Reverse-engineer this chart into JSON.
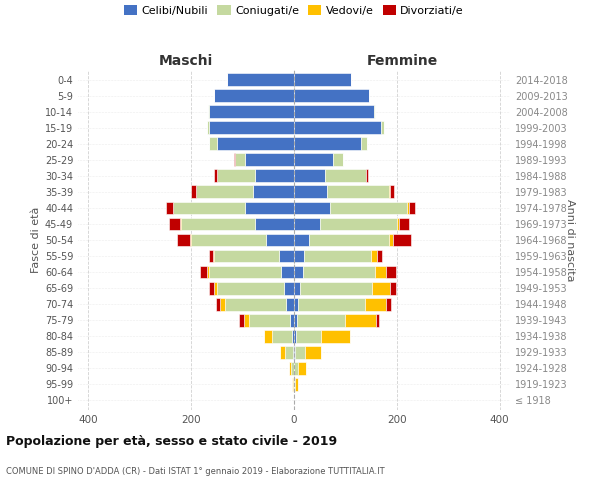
{
  "age_groups": [
    "100+",
    "95-99",
    "90-94",
    "85-89",
    "80-84",
    "75-79",
    "70-74",
    "65-69",
    "60-64",
    "55-59",
    "50-54",
    "45-49",
    "40-44",
    "35-39",
    "30-34",
    "25-29",
    "20-24",
    "15-19",
    "10-14",
    "5-9",
    "0-4"
  ],
  "birth_years": [
    "≤ 1918",
    "1919-1923",
    "1924-1928",
    "1929-1933",
    "1934-1938",
    "1939-1943",
    "1944-1948",
    "1949-1953",
    "1954-1958",
    "1959-1963",
    "1964-1968",
    "1969-1973",
    "1974-1978",
    "1979-1983",
    "1984-1988",
    "1989-1993",
    "1994-1998",
    "1999-2003",
    "2004-2008",
    "2009-2013",
    "2014-2018"
  ],
  "colors": {
    "celibi": "#4472c4",
    "coniugati": "#c5d9a0",
    "vedovi": "#ffc000",
    "divorziati": "#c00000"
  },
  "maschi": {
    "celibi": [
      0,
      0,
      0,
      2,
      3,
      8,
      15,
      20,
      25,
      30,
      55,
      75,
      95,
      80,
      75,
      95,
      150,
      165,
      165,
      155,
      130
    ],
    "coniugati": [
      0,
      2,
      5,
      15,
      40,
      80,
      120,
      130,
      140,
      125,
      145,
      145,
      140,
      110,
      75,
      20,
      15,
      5,
      3,
      0,
      0
    ],
    "vedovi": [
      0,
      2,
      5,
      10,
      15,
      10,
      8,
      5,
      5,
      3,
      3,
      2,
      1,
      0,
      0,
      0,
      0,
      0,
      0,
      0,
      0
    ],
    "divorziati": [
      0,
      0,
      0,
      0,
      0,
      8,
      8,
      10,
      12,
      8,
      25,
      22,
      12,
      10,
      5,
      2,
      0,
      0,
      0,
      0,
      0
    ]
  },
  "femmine": {
    "nubili": [
      0,
      0,
      0,
      2,
      3,
      5,
      8,
      12,
      18,
      20,
      30,
      50,
      70,
      65,
      60,
      75,
      130,
      170,
      155,
      145,
      110
    ],
    "coniugate": [
      0,
      2,
      8,
      20,
      50,
      95,
      130,
      140,
      140,
      130,
      155,
      150,
      150,
      120,
      80,
      20,
      12,
      5,
      3,
      0,
      0
    ],
    "vedove": [
      0,
      5,
      15,
      30,
      55,
      60,
      40,
      35,
      20,
      12,
      8,
      5,
      3,
      2,
      0,
      0,
      0,
      0,
      0,
      0,
      0
    ],
    "divorziate": [
      0,
      0,
      0,
      0,
      0,
      5,
      10,
      12,
      20,
      10,
      35,
      18,
      12,
      8,
      3,
      0,
      0,
      0,
      0,
      0,
      0
    ]
  },
  "xlim": 420,
  "title": "Popolazione per età, sesso e stato civile - 2019",
  "subtitle": "COMUNE DI SPINO D'ADDA (CR) - Dati ISTAT 1° gennaio 2019 - Elaborazione TUTTITALIA.IT",
  "ylabel_left": "Fasce di età",
  "ylabel_right": "Anni di nascita",
  "xlabel_left": "Maschi",
  "xlabel_right": "Femmine",
  "legend_labels": [
    "Celibi/Nubili",
    "Coniugati/e",
    "Vedovi/e",
    "Divorziati/e"
  ],
  "background_color": "#ffffff",
  "grid_color": "#cccccc"
}
